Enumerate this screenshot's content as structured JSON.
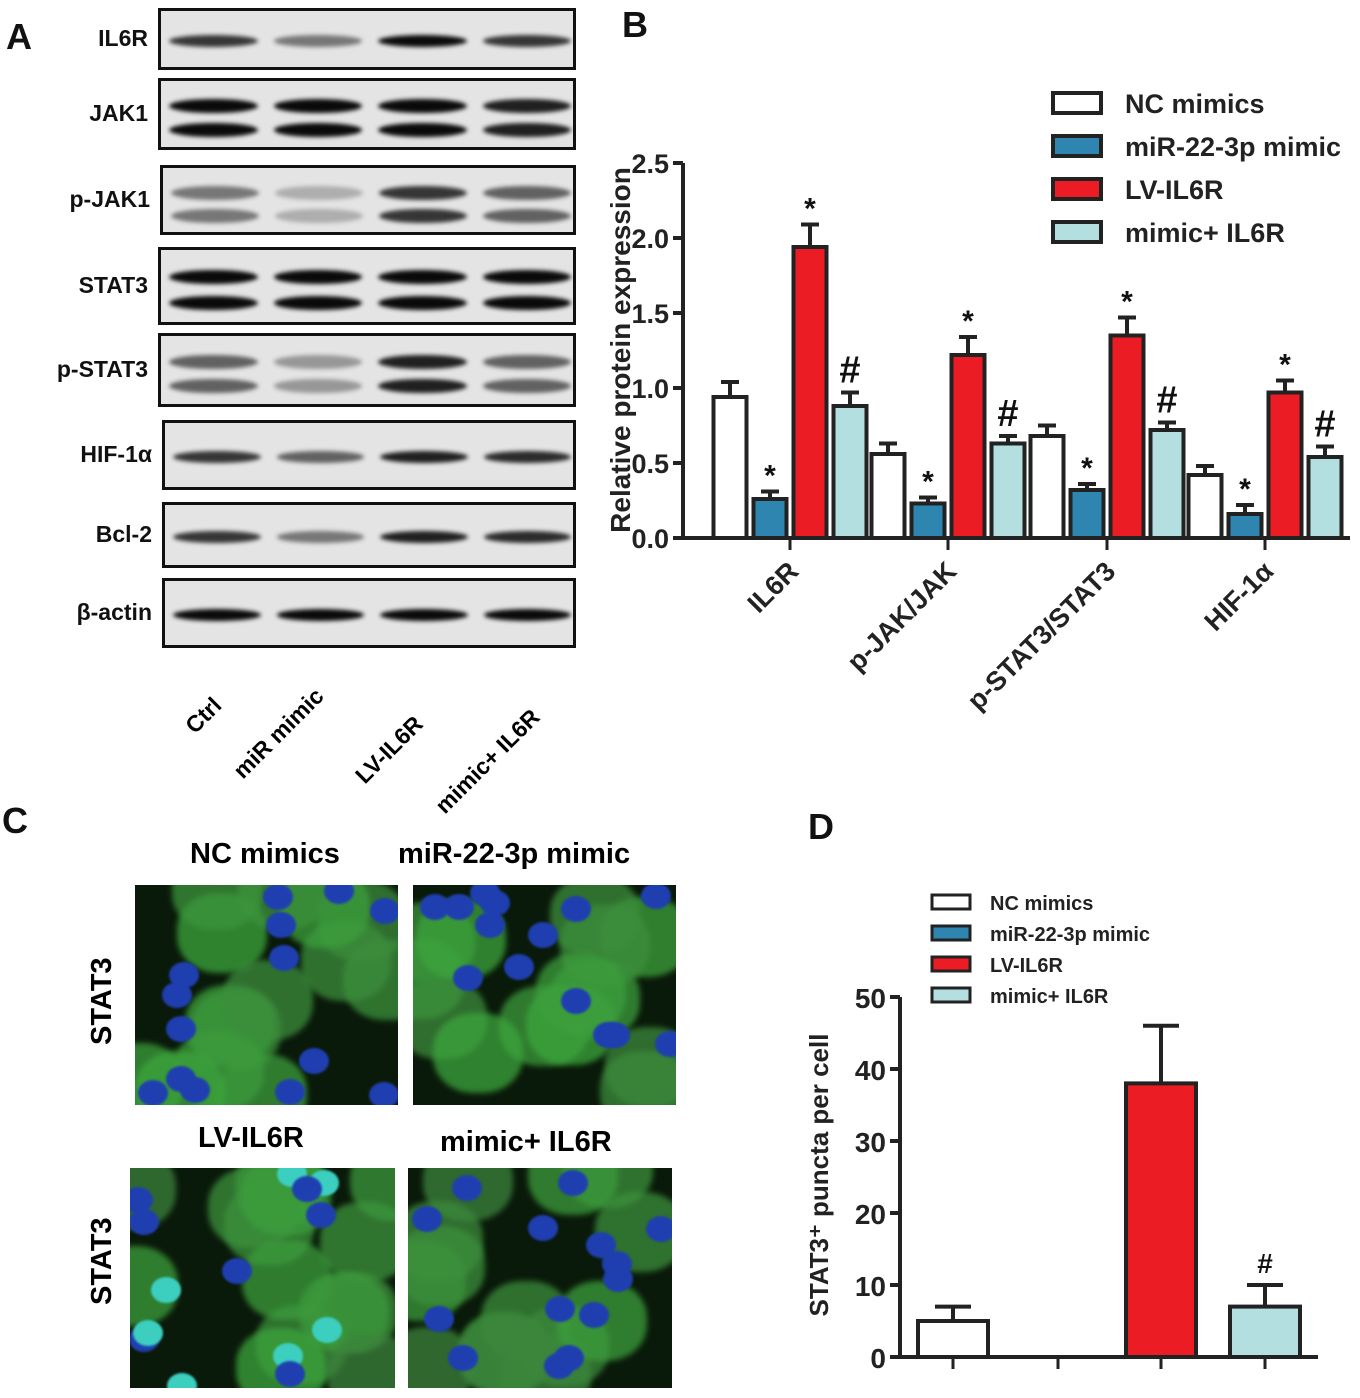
{
  "panels": {
    "a": "A",
    "b": "B",
    "c": "C",
    "d": "D"
  },
  "blots": {
    "rows": [
      "IL6R",
      "JAK1",
      "p-JAK1",
      "STAT3",
      "p-STAT3",
      "HIF-1α",
      "Bcl-2",
      "β-actin"
    ],
    "lanes": [
      "Ctrl",
      "miR mimic",
      "LV-IL6R",
      "mimic+ IL6R"
    ]
  },
  "microscopy": {
    "titles": [
      "NC mimics",
      "miR-22-3p mimic",
      "LV-IL6R",
      "mimic+ IL6R"
    ],
    "row_label": "STAT3"
  },
  "chart_data": [
    {
      "type": "bar",
      "panel": "B",
      "ylabel": "Relative protein expression",
      "ylim": [
        0,
        2.5
      ],
      "yticks": [
        "0.0",
        "0.5",
        "1.0",
        "1.5",
        "2.0",
        "2.5"
      ],
      "categories": [
        "IL6R",
        "p-JAK/JAK",
        "p-STAT3/STAT3",
        "HIF-1α"
      ],
      "legend_position": "top-right",
      "series": [
        {
          "name": "NC mimics",
          "color": "#ffffff",
          "values": [
            0.94,
            0.56,
            0.68,
            0.42
          ],
          "errors": [
            0.1,
            0.07,
            0.07,
            0.06
          ],
          "marks": [
            "",
            "",
            "",
            ""
          ]
        },
        {
          "name": "miR-22-3p mimic",
          "color": "#2e86b0",
          "values": [
            0.26,
            0.23,
            0.32,
            0.16
          ],
          "errors": [
            0.05,
            0.04,
            0.04,
            0.06
          ],
          "marks": [
            "*",
            "*",
            "*",
            "*"
          ]
        },
        {
          "name": "LV-IL6R",
          "color": "#ec1c24",
          "values": [
            1.94,
            1.22,
            1.35,
            0.97
          ],
          "errors": [
            0.15,
            0.12,
            0.12,
            0.08
          ],
          "marks": [
            "*",
            "*",
            "*",
            "*"
          ]
        },
        {
          "name": "mimic+ IL6R",
          "color": "#b3dfe0",
          "values": [
            0.88,
            0.63,
            0.72,
            0.54
          ],
          "errors": [
            0.09,
            0.05,
            0.05,
            0.07
          ],
          "marks": [
            "#",
            "#",
            "#",
            "#"
          ]
        }
      ]
    },
    {
      "type": "bar",
      "panel": "D",
      "ylabel": "STAT3⁺ puncta per cell",
      "ylim": [
        0,
        50
      ],
      "yticks": [
        "0",
        "10",
        "20",
        "30",
        "40",
        "50"
      ],
      "legend_position": "top",
      "series": [
        {
          "name": "NC mimics",
          "color": "#ffffff",
          "value": 5,
          "error": 2,
          "mark": ""
        },
        {
          "name": "miR-22-3p mimic",
          "color": "#2e86b0",
          "value": 0,
          "error": 0,
          "mark": ""
        },
        {
          "name": "LV-IL6R",
          "color": "#ec1c24",
          "value": 38,
          "error": 8,
          "mark": ""
        },
        {
          "name": "mimic+ IL6R",
          "color": "#b3dfe0",
          "value": 7,
          "error": 3,
          "mark": "#"
        }
      ]
    }
  ]
}
